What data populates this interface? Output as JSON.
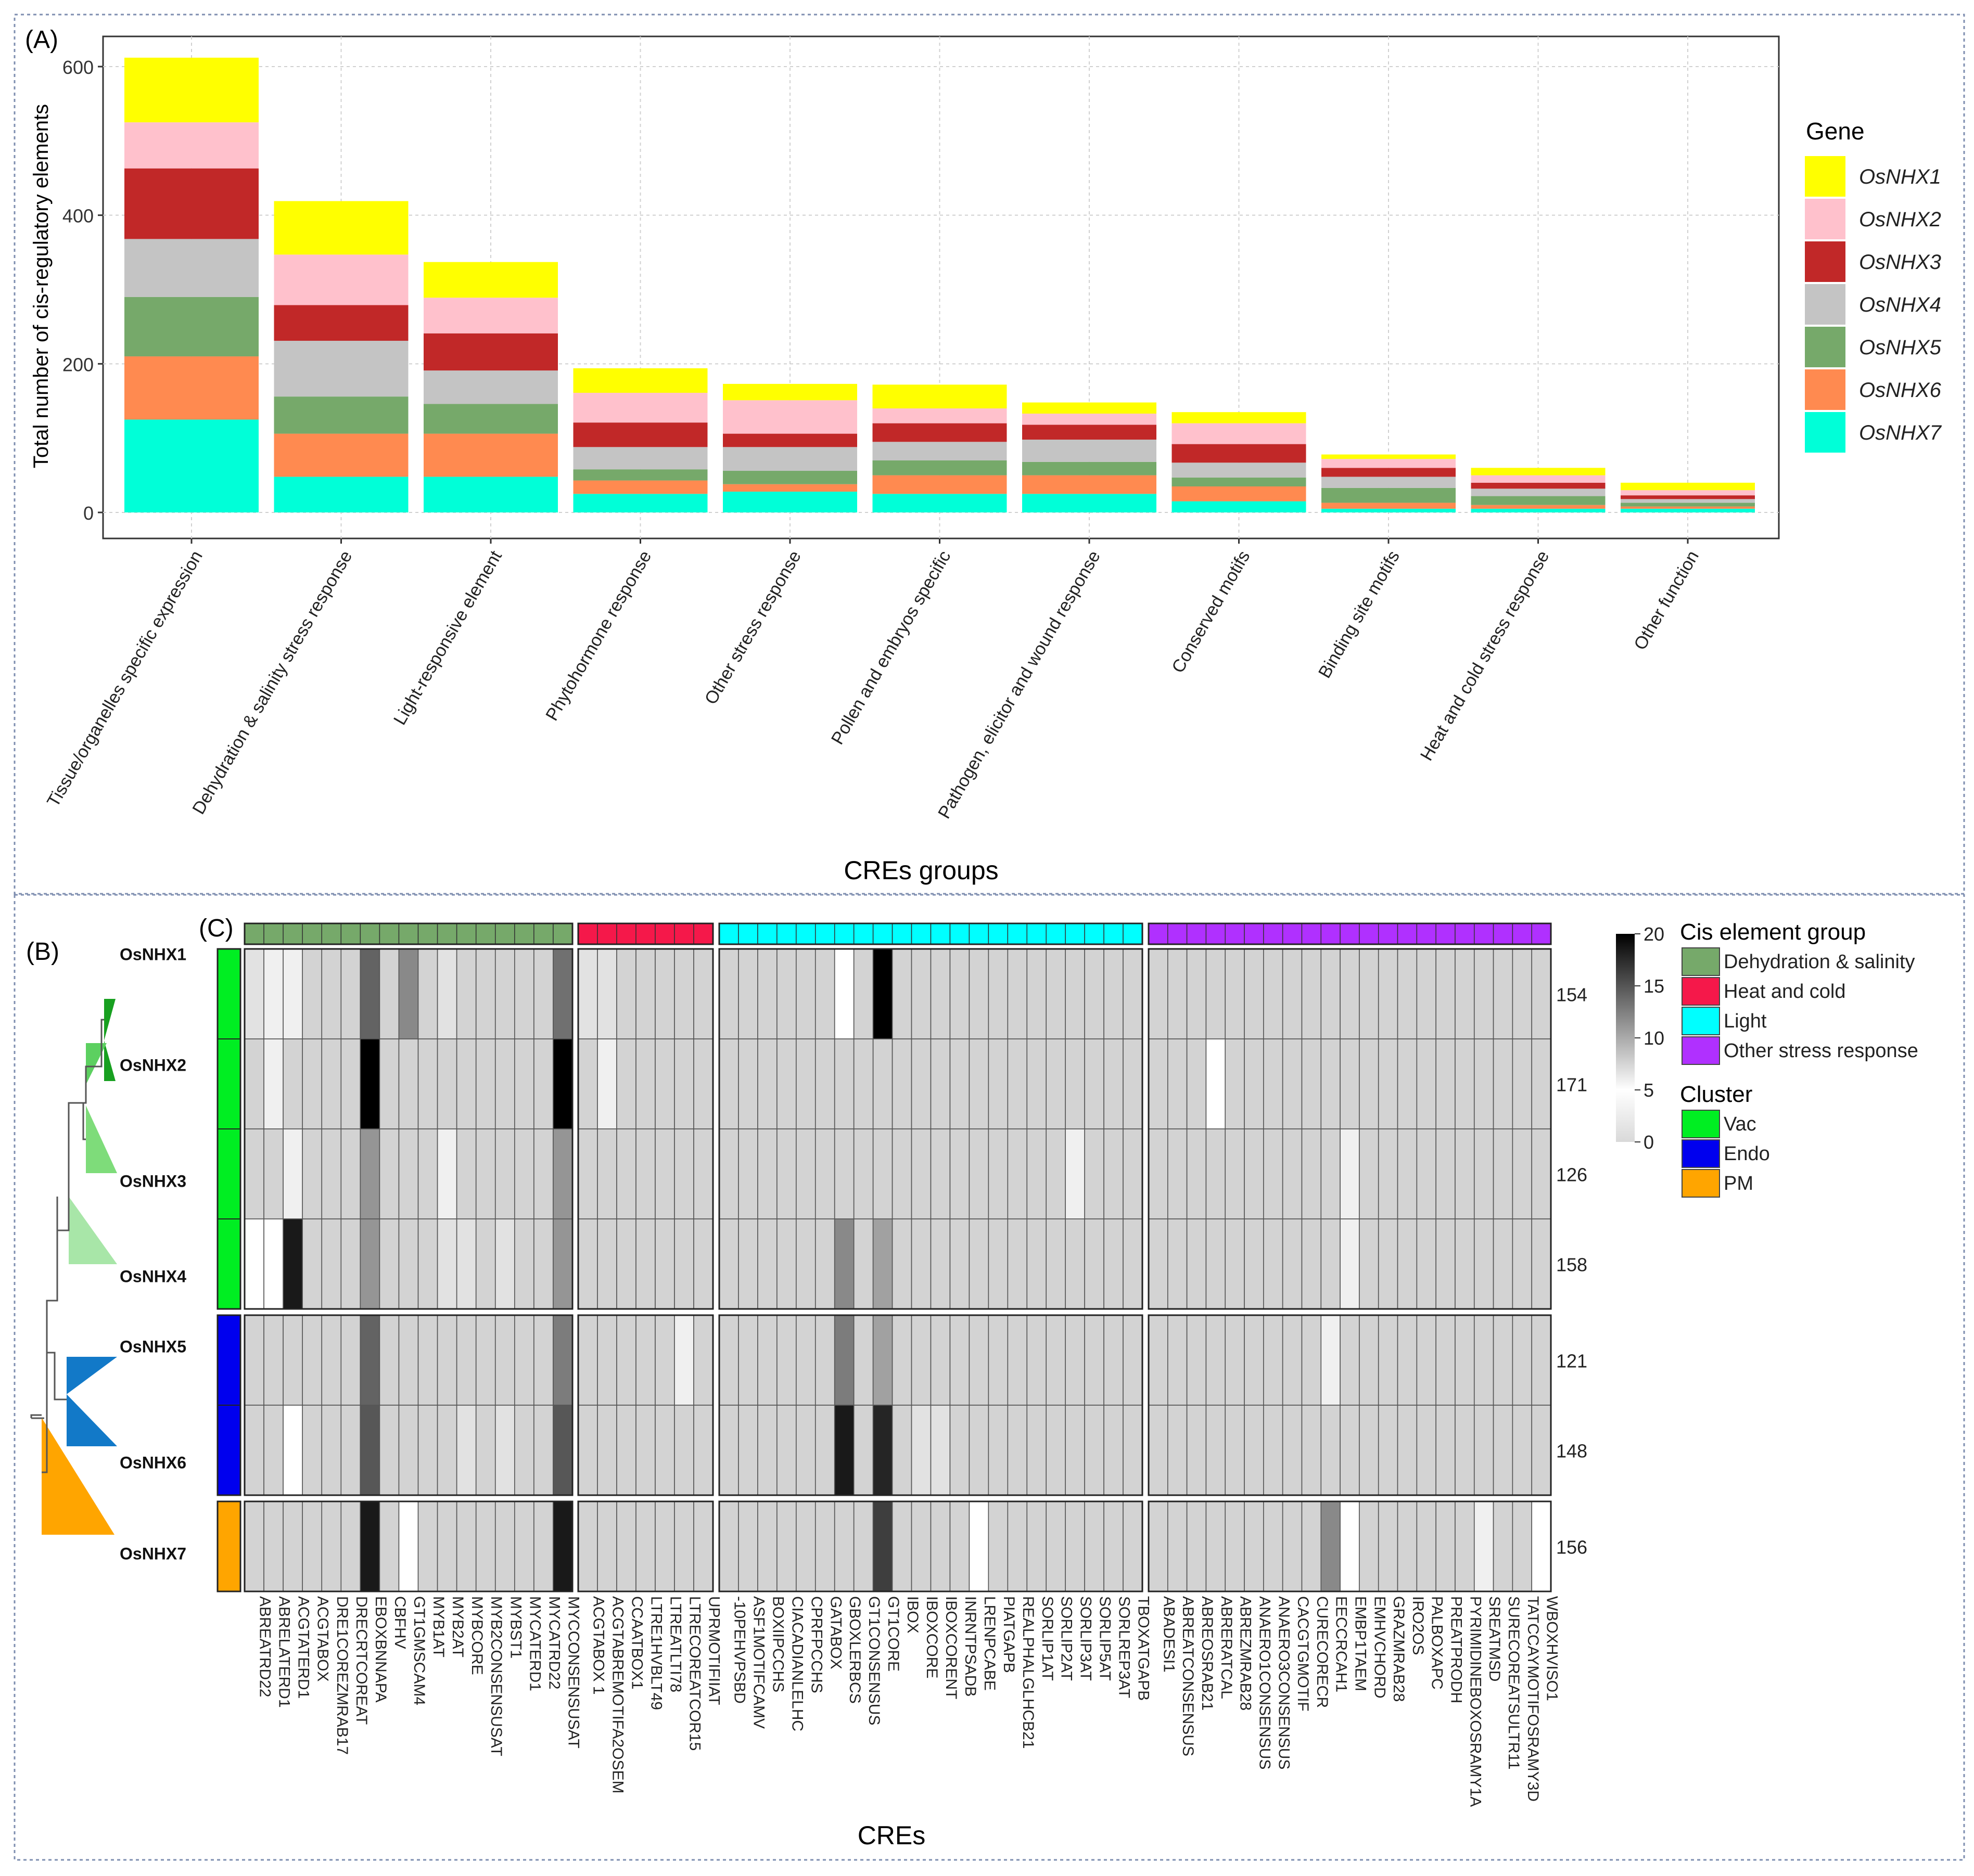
{
  "chart_data": [
    {
      "type": "stacked-bar",
      "panel_label": "(A)",
      "title": "",
      "xlabel": "CREs groups",
      "ylabel": "Total number of cis-regulatory elements",
      "ylim": [
        0,
        620
      ],
      "yticks": [
        0,
        200,
        400,
        600
      ],
      "grid": true,
      "legend_title": "Gene",
      "legend_position": "right",
      "categories": [
        "Tissue/organelles specific expression",
        "Dehydration & salinity stress response",
        "Light-responsive element",
        "Phytohormone response",
        "Other stress response",
        "Pollen and embryos specific",
        "Pathogen, elicitor and wound response",
        "Conserved motifs",
        "Binding site motifs",
        "Heat and cold stress response",
        "Other function"
      ],
      "series": [
        {
          "name": "OsNHX7",
          "color": "#00FFD8",
          "values": [
            125,
            48,
            48,
            25,
            28,
            25,
            25,
            15,
            5,
            5,
            5
          ]
        },
        {
          "name": "OsNHX6",
          "color": "#FF8A50",
          "values": [
            85,
            58,
            58,
            18,
            10,
            25,
            25,
            20,
            8,
            5,
            3
          ]
        },
        {
          "name": "OsNHX5",
          "color": "#76A96A",
          "values": [
            80,
            50,
            40,
            15,
            18,
            20,
            18,
            12,
            20,
            12,
            5
          ]
        },
        {
          "name": "OsNHX4",
          "color": "#C4C4C4",
          "values": [
            78,
            75,
            45,
            30,
            32,
            25,
            30,
            20,
            15,
            10,
            5
          ]
        },
        {
          "name": "OsNHX3",
          "color": "#C12828",
          "values": [
            95,
            48,
            50,
            33,
            18,
            25,
            20,
            25,
            12,
            8,
            5
          ]
        },
        {
          "name": "OsNHX2",
          "color": "#FFC1CC",
          "values": [
            62,
            68,
            48,
            40,
            45,
            20,
            15,
            28,
            12,
            10,
            7
          ]
        },
        {
          "name": "OsNHX1",
          "color": "#FFFF00",
          "values": [
            87,
            72,
            48,
            33,
            22,
            32,
            15,
            15,
            6,
            10,
            10
          ]
        }
      ]
    },
    {
      "type": "heatmap",
      "panel_label_tree": "(B)",
      "panel_label": "(C)",
      "xlabel": "CREs",
      "genes": [
        "OsNHX1",
        "OsNHX2",
        "OsNHX3",
        "OsNHX4",
        "OsNHX5",
        "OsNHX6",
        "OsNHX7"
      ],
      "row_totals": [
        "154",
        "171",
        "126",
        "158",
        "121",
        "148",
        "156"
      ],
      "gene_clusters": [
        "Vac",
        "Vac",
        "Vac",
        "Vac",
        "Endo",
        "Endo",
        "PM"
      ],
      "columns": [
        "ABREATRD22",
        "ABRELATERD1",
        "ACGTATERD1",
        "ACGTABOX",
        "DRE1COREZMRAB17",
        "DRECRTCOREAT",
        "EBOXBNNAPA",
        "CBFHV",
        "GT1GMSCAM4",
        "MYB1AT",
        "MYB2AT",
        "MYBCORE",
        "MYB2CONSENSUSAT",
        "MYBST1",
        "MYCATERD1",
        "MYCATRD22",
        "MYCCONSENSUSAT",
        "ACGTABOX 1",
        "ACGTABREMOTIFA2OSEM",
        "CCAATBOX1",
        "LTRE1HVBLT49",
        "LTREATLTI78",
        "LTRECOREATCOR15",
        "UPRMOTIFIIAT",
        "-10PEHVPSBD",
        "ASF1MOTIFCAMV",
        "BOXIIPCCHS",
        "CIACADIANLELHC",
        "CPRFPCCHS",
        "GATABOX",
        "GBOXLERBCS",
        "GT1CONSENSUS",
        "GT1CORE",
        "IBOX",
        "IBOXCORE",
        "IBOXCORENT",
        "INRNTPSADB",
        "LRENPCABE",
        "PIATGAPB",
        "REALPHALGLHCB21",
        "SORLIP1AT",
        "SORLIP2AT",
        "SORLIP3AT",
        "SORLIP5AT",
        "SORLREP3AT",
        "TBOXATGAPB",
        "ABADESI1",
        "ABREATCONSENSUS",
        "ABREOSRAB21",
        "ABRERATCAL",
        "ABREZMRAB28",
        "ANAERO1CONSENSUS",
        "ANAERO3CONSENSUS",
        "CACGTGMOTIF",
        "CURECORECR",
        "EECCRCAH1",
        "EMBP1TAEM",
        "EMHVCHORD",
        "GRAZMRAB28",
        "IRO2OS",
        "PALBOXAPC",
        "PREATPRODH",
        "PYRIMIDINEBOXOSRAMY1A",
        "SREATMSD",
        "SURECOREATSULTR11",
        "TATCCAYMOTIFOSRAMY3D",
        "WBOXHVISO1"
      ],
      "column_groups": [
        {
          "name": "Dehydration & salinity",
          "color": "#76A96A",
          "count": 17
        },
        {
          "name": "Heat and cold",
          "color": "#F5184A",
          "count": 7
        },
        {
          "name": "Light",
          "color": "#00FFFF",
          "count": 22
        },
        {
          "name": "Other stress response",
          "color": "#B030FF",
          "count": 21
        }
      ],
      "clusters": [
        {
          "name": "Vac",
          "color": "#00EE22"
        },
        {
          "name": "Endo",
          "color": "#0000EE"
        },
        {
          "name": "PM",
          "color": "#FFA500"
        }
      ],
      "scale": {
        "min": 0,
        "max": 20,
        "ticks": [
          0,
          5,
          10,
          15,
          20
        ]
      },
      "default_value": 3,
      "values": [
        [
          2,
          1,
          1,
          3,
          3,
          3,
          12,
          3,
          9,
          3,
          2,
          3,
          3,
          3,
          3,
          3,
          11,
          2,
          2,
          3,
          3,
          3,
          3,
          3,
          3,
          3,
          3,
          3,
          3,
          3,
          0,
          3,
          20,
          3,
          3,
          3,
          3,
          3,
          3,
          3,
          3,
          3,
          3,
          3,
          3,
          3,
          3,
          3,
          3,
          3,
          3,
          3,
          3,
          3,
          3,
          3,
          3,
          3,
          3,
          3,
          3,
          3,
          3,
          3,
          3,
          3,
          3
        ],
        [
          3,
          1,
          3,
          3,
          3,
          3,
          20,
          3,
          3,
          3,
          3,
          3,
          3,
          3,
          3,
          3,
          20,
          3,
          1,
          3,
          3,
          3,
          3,
          3,
          3,
          3,
          3,
          3,
          3,
          3,
          3,
          3,
          3,
          3,
          3,
          3,
          3,
          3,
          3,
          3,
          3,
          3,
          3,
          3,
          3,
          3,
          3,
          3,
          3,
          0,
          3,
          3,
          3,
          3,
          3,
          3,
          3,
          3,
          3,
          3,
          3,
          3,
          3,
          3,
          3,
          3,
          3
        ],
        [
          3,
          3,
          1,
          3,
          3,
          3,
          8,
          3,
          3,
          3,
          1,
          3,
          3,
          3,
          3,
          3,
          8,
          3,
          3,
          3,
          3,
          3,
          3,
          3,
          3,
          3,
          3,
          3,
          3,
          3,
          3,
          3,
          3,
          3,
          3,
          3,
          3,
          3,
          3,
          3,
          3,
          3,
          1,
          3,
          3,
          3,
          3,
          3,
          3,
          3,
          3,
          3,
          3,
          3,
          3,
          3,
          1,
          3,
          3,
          3,
          3,
          3,
          3,
          3,
          3,
          3,
          3
        ],
        [
          0,
          0,
          18,
          3,
          3,
          3,
          8,
          3,
          3,
          3,
          2,
          2,
          3,
          2,
          3,
          3,
          8,
          3,
          3,
          3,
          3,
          3,
          3,
          3,
          3,
          3,
          3,
          3,
          3,
          3,
          9,
          3,
          7,
          3,
          3,
          3,
          3,
          3,
          3,
          3,
          3,
          3,
          3,
          3,
          3,
          3,
          3,
          3,
          3,
          3,
          3,
          3,
          3,
          3,
          3,
          3,
          1,
          3,
          3,
          3,
          3,
          3,
          3,
          3,
          3,
          3,
          3
        ],
        [
          3,
          3,
          3,
          3,
          3,
          3,
          12,
          3,
          3,
          3,
          3,
          3,
          3,
          3,
          3,
          3,
          10,
          3,
          3,
          3,
          3,
          3,
          1,
          3,
          3,
          3,
          3,
          3,
          3,
          3,
          10,
          3,
          7,
          3,
          3,
          3,
          3,
          3,
          3,
          3,
          3,
          3,
          3,
          3,
          3,
          3,
          3,
          3,
          3,
          3,
          3,
          3,
          3,
          3,
          3,
          1,
          3,
          3,
          3,
          3,
          3,
          3,
          3,
          3,
          3,
          3,
          3
        ],
        [
          3,
          3,
          0,
          3,
          3,
          3,
          13,
          3,
          3,
          3,
          3,
          2,
          3,
          2,
          3,
          3,
          13,
          3,
          3,
          3,
          3,
          3,
          3,
          3,
          3,
          3,
          3,
          3,
          3,
          3,
          18,
          3,
          17,
          3,
          2,
          2,
          3,
          3,
          3,
          3,
          3,
          3,
          3,
          3,
          3,
          3,
          3,
          3,
          3,
          3,
          3,
          3,
          3,
          3,
          3,
          3,
          3,
          3,
          3,
          3,
          3,
          3,
          3,
          3,
          3,
          3,
          3
        ],
        [
          3,
          3,
          3,
          3,
          3,
          3,
          18,
          3,
          0,
          3,
          3,
          3,
          3,
          3,
          3,
          3,
          18,
          3,
          3,
          3,
          3,
          3,
          3,
          3,
          3,
          3,
          3,
          3,
          3,
          3,
          3,
          3,
          15,
          3,
          3,
          3,
          3,
          0,
          3,
          3,
          3,
          3,
          3,
          3,
          3,
          3,
          3,
          3,
          3,
          3,
          3,
          3,
          3,
          3,
          3,
          9,
          0,
          3,
          3,
          3,
          3,
          3,
          3,
          1,
          3,
          3,
          0
        ]
      ],
      "legend_title_groups": "Cis element group",
      "legend_title_cluster": "Cluster"
    }
  ]
}
